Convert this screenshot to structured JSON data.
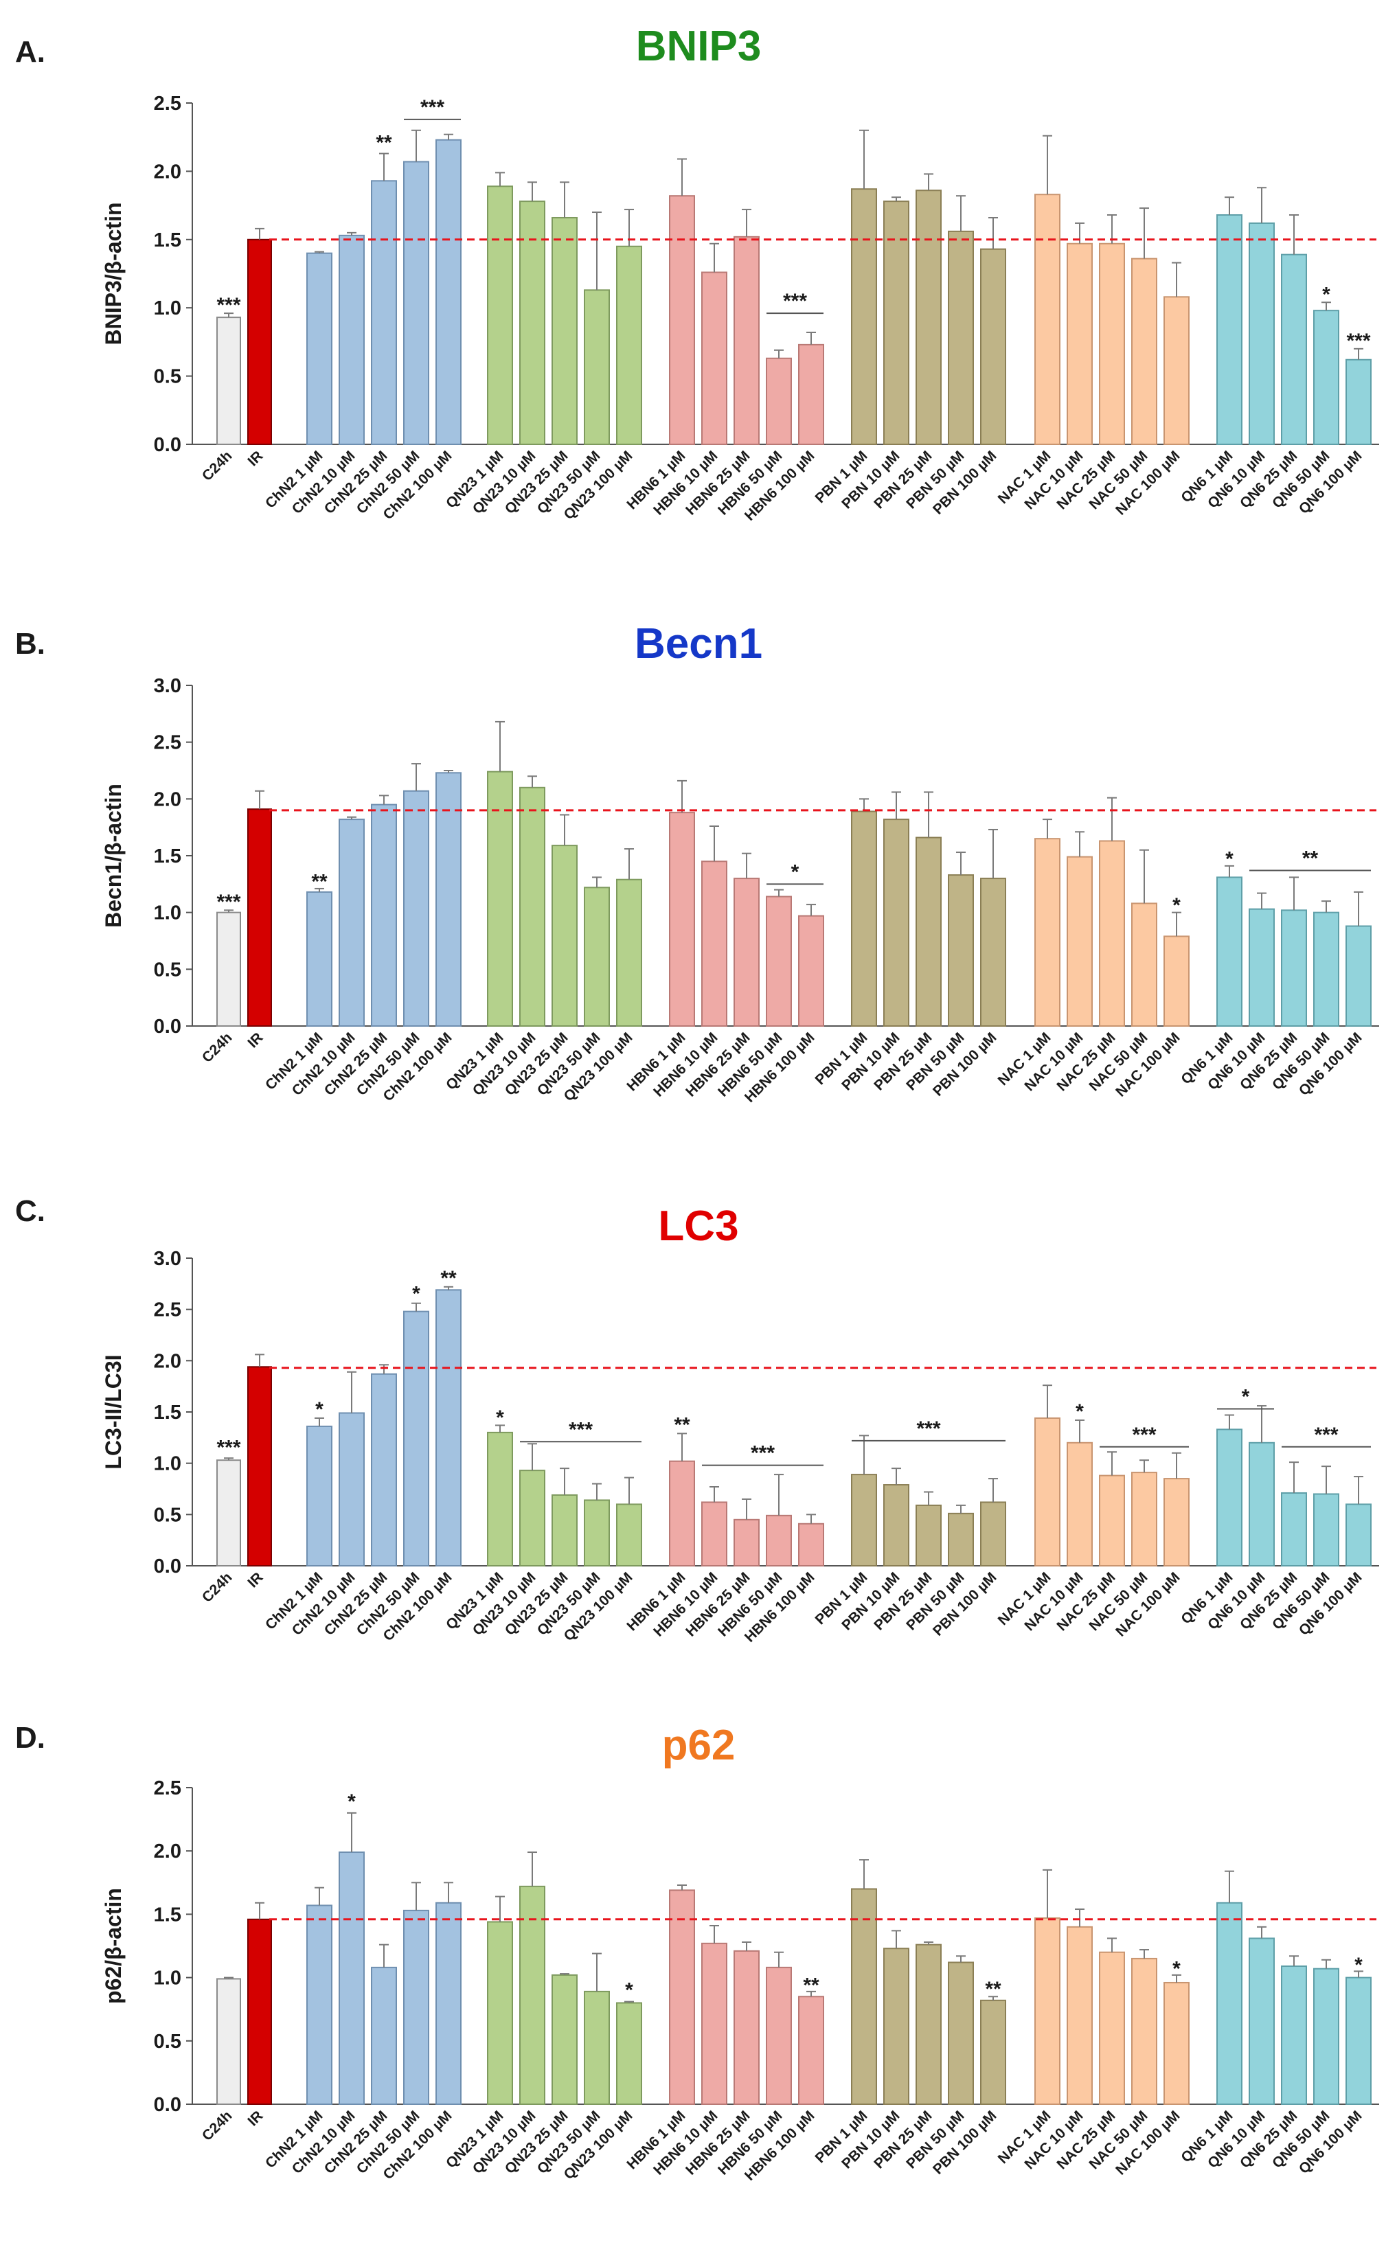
{
  "figure": {
    "group_colors": {
      "C24h": "#eeeeee",
      "IR": "#d40000",
      "ChN2": "#a3c2e0",
      "QN23": "#b4d18c",
      "HBN6": "#eeaaa6",
      "PBN": "#bfb487",
      "NAC": "#fcc9a2",
      "QN6": "#92d3db"
    },
    "group_strokes": {
      "C24h": "#8a8a8a",
      "IR": "#7a0000",
      "ChN2": "#6f8fb0",
      "QN23": "#7e9a5e",
      "HBN6": "#b97975",
      "PBN": "#8b7f55",
      "NAC": "#c99570",
      "QN6": "#5e9fa8"
    },
    "reference_line_color": "#e8141c"
  },
  "chart_data": [
    {
      "type": "bar",
      "panel": "A.",
      "title": "BNIP3",
      "title_color": "#1e8c1e",
      "ylabel": "BNIP3/β-actin",
      "ylim": [
        0,
        2.5
      ],
      "yticks": [
        "0.0",
        "0.5",
        "1.0",
        "1.5",
        "2.0",
        "2.5"
      ],
      "ytick_values": [
        0,
        0.5,
        1.0,
        1.5,
        2.0,
        2.5
      ],
      "reference_value": 1.5,
      "categories": [
        "C24h",
        "IR",
        "ChN2 1 µM",
        "ChN2 10 µM",
        "ChN2 25 µM",
        "ChN2 50 µM",
        "ChN2 100 µM",
        "QN23 1 µM",
        "QN23 10 µM",
        "QN23 25 µM",
        "QN23 50 µM",
        "QN23 100 µM",
        "HBN6 1 µM",
        "HBN6 10 µM",
        "HBN6 25 µM",
        "HBN6 50 µM",
        "HBN6 100 µM",
        "PBN 1 µM",
        "PBN 10 µM",
        "PBN 25 µM",
        "PBN 50 µM",
        "PBN 100 µM",
        "NAC 1 µM",
        "NAC 10 µM",
        "NAC 25 µM",
        "NAC 50 µM",
        "NAC 100 µM",
        "QN6 1 µM",
        "QN6 10 µM",
        "QN6 25 µM",
        "QN6 50 µM",
        "QN6 100 µM"
      ],
      "groups": [
        "C24h",
        "IR",
        "ChN2",
        "ChN2",
        "ChN2",
        "ChN2",
        "ChN2",
        "QN23",
        "QN23",
        "QN23",
        "QN23",
        "QN23",
        "HBN6",
        "HBN6",
        "HBN6",
        "HBN6",
        "HBN6",
        "PBN",
        "PBN",
        "PBN",
        "PBN",
        "PBN",
        "NAC",
        "NAC",
        "NAC",
        "NAC",
        "NAC",
        "QN6",
        "QN6",
        "QN6",
        "QN6",
        "QN6"
      ],
      "values": [
        0.93,
        1.5,
        1.4,
        1.53,
        1.93,
        2.07,
        2.23,
        1.89,
        1.78,
        1.66,
        1.13,
        1.45,
        1.82,
        1.26,
        1.52,
        0.63,
        0.73,
        1.87,
        1.78,
        1.86,
        1.56,
        1.43,
        1.83,
        1.47,
        1.47,
        1.36,
        1.08,
        1.68,
        1.62,
        1.39,
        0.98,
        0.62
      ],
      "errors": [
        0.03,
        0.08,
        0.01,
        0.02,
        0.2,
        0.23,
        0.04,
        0.1,
        0.14,
        0.26,
        0.57,
        0.27,
        0.27,
        0.21,
        0.2,
        0.06,
        0.09,
        0.43,
        0.03,
        0.12,
        0.26,
        0.23,
        0.43,
        0.15,
        0.21,
        0.37,
        0.25,
        0.13,
        0.26,
        0.29,
        0.06,
        0.08
      ],
      "annotations": [
        {
          "text": "***",
          "bars": [
            0
          ],
          "y": 1.0
        },
        {
          "text": "**",
          "bars": [
            4
          ],
          "y": 2.19
        },
        {
          "text": "***",
          "bars": [
            5,
            6
          ],
          "y": 2.38,
          "line": true
        },
        {
          "text": "***",
          "bars": [
            15,
            16
          ],
          "y": 0.96,
          "line": true
        },
        {
          "text": "*",
          "bars": [
            30
          ],
          "y": 1.08
        },
        {
          "text": "***",
          "bars": [
            31
          ],
          "y": 0.74
        }
      ]
    },
    {
      "type": "bar",
      "panel": "B.",
      "title": "Becn1",
      "title_color": "#1538c8",
      "ylabel": "Becn1/β-actin",
      "ylim": [
        0,
        3.0
      ],
      "yticks": [
        "0.0",
        "0.5",
        "1.0",
        "1.5",
        "2.0",
        "2.5",
        "3.0"
      ],
      "ytick_values": [
        0,
        0.5,
        1.0,
        1.5,
        2.0,
        2.5,
        3.0
      ],
      "reference_value": 1.9,
      "categories": [
        "C24h",
        "IR",
        "ChN2 1 µM",
        "ChN2 10 µM",
        "ChN2 25 µM",
        "ChN2 50 µM",
        "ChN2 100 µM",
        "QN23 1 µM",
        "QN23 10 µM",
        "QN23 25 µM",
        "QN23 50 µM",
        "QN23 100 µM",
        "HBN6 1 µM",
        "HBN6 10 µM",
        "HBN6 25 µM",
        "HBN6 50 µM",
        "HBN6 100 µM",
        "PBN 1 µM",
        "PBN 10 µM",
        "PBN 25 µM",
        "PBN 50 µM",
        "PBN 100 µM",
        "NAC 1 µM",
        "NAC 10 µM",
        "NAC 25 µM",
        "NAC 50 µM",
        "NAC 100 µM",
        "QN6 1 µM",
        "QN6 10 µM",
        "QN6 25 µM",
        "QN6 50 µM",
        "QN6 100 µM"
      ],
      "groups": [
        "C24h",
        "IR",
        "ChN2",
        "ChN2",
        "ChN2",
        "ChN2",
        "ChN2",
        "QN23",
        "QN23",
        "QN23",
        "QN23",
        "QN23",
        "HBN6",
        "HBN6",
        "HBN6",
        "HBN6",
        "HBN6",
        "PBN",
        "PBN",
        "PBN",
        "PBN",
        "PBN",
        "NAC",
        "NAC",
        "NAC",
        "NAC",
        "NAC",
        "QN6",
        "QN6",
        "QN6",
        "QN6",
        "QN6"
      ],
      "values": [
        1.0,
        1.91,
        1.18,
        1.82,
        1.95,
        2.07,
        2.23,
        2.24,
        2.1,
        1.59,
        1.22,
        1.29,
        1.88,
        1.45,
        1.3,
        1.14,
        0.97,
        1.89,
        1.82,
        1.66,
        1.33,
        1.3,
        1.65,
        1.49,
        1.63,
        1.08,
        0.79,
        1.31,
        1.03,
        1.02,
        1.0,
        0.88
      ],
      "errors": [
        0.02,
        0.16,
        0.03,
        0.02,
        0.08,
        0.24,
        0.02,
        0.44,
        0.1,
        0.27,
        0.09,
        0.27,
        0.28,
        0.31,
        0.22,
        0.06,
        0.1,
        0.11,
        0.24,
        0.4,
        0.2,
        0.43,
        0.17,
        0.22,
        0.38,
        0.47,
        0.21,
        0.1,
        0.14,
        0.29,
        0.1,
        0.3
      ],
      "annotations": [
        {
          "text": "***",
          "bars": [
            0
          ],
          "y": 1.07
        },
        {
          "text": "**",
          "bars": [
            2
          ],
          "y": 1.25
        },
        {
          "text": "*",
          "bars": [
            15,
            16
          ],
          "y": 1.25,
          "line": true
        },
        {
          "text": "*",
          "bars": [
            26
          ],
          "y": 1.04
        },
        {
          "text": "*",
          "bars": [
            27
          ],
          "y": 1.45
        },
        {
          "text": "**",
          "bars": [
            28,
            31
          ],
          "y": 1.37,
          "line": true
        }
      ]
    },
    {
      "type": "bar",
      "panel": "C.",
      "title": "LC3",
      "title_color": "#e00000",
      "ylabel": "LC3-II/LC3I",
      "ylim": [
        0,
        3.0
      ],
      "yticks": [
        "0.0",
        "0.5",
        "1.0",
        "1.5",
        "2.0",
        "2.5",
        "3.0"
      ],
      "ytick_values": [
        0,
        0.5,
        1.0,
        1.5,
        2.0,
        2.5,
        3.0
      ],
      "reference_value": 1.93,
      "categories": [
        "C24h",
        "IR",
        "ChN2 1 µM",
        "ChN2 10 µM",
        "ChN2 25 µM",
        "ChN2 50 µM",
        "ChN2 100 µM",
        "QN23 1 µM",
        "QN23 10 µM",
        "QN23 25 µM",
        "QN23 50 µM",
        "QN23 100 µM",
        "HBN6 1 µM",
        "HBN6 10 µM",
        "HBN6 25 µM",
        "HBN6 50 µM",
        "HBN6 100 µM",
        "PBN 1 µM",
        "PBN 10 µM",
        "PBN 25 µM",
        "PBN 50 µM",
        "PBN 100 µM",
        "NAC 1 µM",
        "NAC 10 µM",
        "NAC 25 µM",
        "NAC 50 µM",
        "NAC 100 µM",
        "QN6 1 µM",
        "QN6 10 µM",
        "QN6 25 µM",
        "QN6 50 µM",
        "QN6 100 µM"
      ],
      "groups": [
        "C24h",
        "IR",
        "ChN2",
        "ChN2",
        "ChN2",
        "ChN2",
        "ChN2",
        "QN23",
        "QN23",
        "QN23",
        "QN23",
        "QN23",
        "HBN6",
        "HBN6",
        "HBN6",
        "HBN6",
        "HBN6",
        "PBN",
        "PBN",
        "PBN",
        "PBN",
        "PBN",
        "NAC",
        "NAC",
        "NAC",
        "NAC",
        "NAC",
        "QN6",
        "QN6",
        "QN6",
        "QN6",
        "QN6"
      ],
      "values": [
        1.03,
        1.94,
        1.36,
        1.49,
        1.87,
        2.48,
        2.69,
        1.3,
        0.93,
        0.69,
        0.64,
        0.6,
        1.02,
        0.62,
        0.45,
        0.49,
        0.41,
        0.89,
        0.79,
        0.59,
        0.51,
        0.62,
        1.44,
        1.2,
        0.88,
        0.91,
        0.85,
        1.33,
        1.2,
        0.71,
        0.7,
        0.6
      ],
      "errors": [
        0.02,
        0.12,
        0.08,
        0.4,
        0.09,
        0.08,
        0.03,
        0.07,
        0.26,
        0.26,
        0.16,
        0.26,
        0.27,
        0.15,
        0.2,
        0.4,
        0.09,
        0.38,
        0.16,
        0.13,
        0.08,
        0.23,
        0.32,
        0.22,
        0.23,
        0.12,
        0.25,
        0.14,
        0.36,
        0.3,
        0.27,
        0.27
      ],
      "annotations": [
        {
          "text": "***",
          "bars": [
            0
          ],
          "y": 1.13
        },
        {
          "text": "*",
          "bars": [
            2
          ],
          "y": 1.5
        },
        {
          "text": "*",
          "bars": [
            5
          ],
          "y": 2.63
        },
        {
          "text": "**",
          "bars": [
            6
          ],
          "y": 2.78
        },
        {
          "text": "*",
          "bars": [
            7
          ],
          "y": 1.42
        },
        {
          "text": "***",
          "bars": [
            8,
            11
          ],
          "y": 1.21,
          "line": true
        },
        {
          "text": "**",
          "bars": [
            12
          ],
          "y": 1.35
        },
        {
          "text": "***",
          "bars": [
            13,
            16
          ],
          "y": 0.98,
          "line": true
        },
        {
          "text": "***",
          "bars": [
            17,
            21
          ],
          "y": 1.22,
          "line": true
        },
        {
          "text": "*",
          "bars": [
            23
          ],
          "y": 1.48
        },
        {
          "text": "***",
          "bars": [
            24,
            26
          ],
          "y": 1.16,
          "line": true
        },
        {
          "text": "*",
          "bars": [
            27,
            28
          ],
          "y": 1.53,
          "line": true
        },
        {
          "text": "***",
          "bars": [
            29,
            31
          ],
          "y": 1.16,
          "line": true
        }
      ]
    },
    {
      "type": "bar",
      "panel": "D.",
      "title": "p62",
      "title_color": "#f07820",
      "ylabel": "p62/β-actin",
      "ylim": [
        0,
        2.5
      ],
      "yticks": [
        "0.0",
        "0.5",
        "1.0",
        "1.5",
        "2.0",
        "2.5"
      ],
      "ytick_values": [
        0,
        0.5,
        1.0,
        1.5,
        2.0,
        2.5
      ],
      "reference_value": 1.46,
      "categories": [
        "C24h",
        "IR",
        "ChN2 1 µM",
        "ChN2 10 µM",
        "ChN2 25 µM",
        "ChN2 50 µM",
        "ChN2 100 µM",
        "QN23 1 µM",
        "QN23 10 µM",
        "QN23 25 µM",
        "QN23 50 µM",
        "QN23 100 µM",
        "HBN6 1 µM",
        "HBN6 10 µM",
        "HBN6 25 µM",
        "HBN6 50 µM",
        "HBN6 100 µM",
        "PBN 1 µM",
        "PBN 10 µM",
        "PBN 25 µM",
        "PBN 50 µM",
        "PBN 100 µM",
        "NAC 1 µM",
        "NAC 10 µM",
        "NAC 25 µM",
        "NAC 50 µM",
        "NAC 100 µM",
        "QN6 1 µM",
        "QN6 10 µM",
        "QN6 25 µM",
        "QN6 50 µM",
        "QN6 100 µM"
      ],
      "groups": [
        "C24h",
        "IR",
        "ChN2",
        "ChN2",
        "ChN2",
        "ChN2",
        "ChN2",
        "QN23",
        "QN23",
        "QN23",
        "QN23",
        "QN23",
        "HBN6",
        "HBN6",
        "HBN6",
        "HBN6",
        "HBN6",
        "PBN",
        "PBN",
        "PBN",
        "PBN",
        "PBN",
        "NAC",
        "NAC",
        "NAC",
        "NAC",
        "NAC",
        "QN6",
        "QN6",
        "QN6",
        "QN6",
        "QN6"
      ],
      "values": [
        0.99,
        1.46,
        1.57,
        1.99,
        1.08,
        1.53,
        1.59,
        1.44,
        1.72,
        1.02,
        0.89,
        0.8,
        1.69,
        1.27,
        1.21,
        1.08,
        0.85,
        1.7,
        1.23,
        1.26,
        1.12,
        0.82,
        1.47,
        1.4,
        1.2,
        1.15,
        0.96,
        1.59,
        1.31,
        1.09,
        1.07,
        1.0
      ],
      "errors": [
        0.01,
        0.13,
        0.14,
        0.31,
        0.18,
        0.22,
        0.16,
        0.2,
        0.27,
        0.01,
        0.3,
        0.01,
        0.04,
        0.14,
        0.07,
        0.12,
        0.04,
        0.23,
        0.14,
        0.02,
        0.05,
        0.03,
        0.38,
        0.14,
        0.11,
        0.07,
        0.06,
        0.25,
        0.09,
        0.08,
        0.07,
        0.05
      ],
      "annotations": [
        {
          "text": "*",
          "bars": [
            3
          ],
          "y": 2.37
        },
        {
          "text": "*",
          "bars": [
            11
          ],
          "y": 0.88
        },
        {
          "text": "**",
          "bars": [
            16
          ],
          "y": 0.92
        },
        {
          "text": "**",
          "bars": [
            21
          ],
          "y": 0.89
        },
        {
          "text": "*",
          "bars": [
            26
          ],
          "y": 1.05
        },
        {
          "text": "*",
          "bars": [
            31
          ],
          "y": 1.08
        }
      ]
    }
  ]
}
